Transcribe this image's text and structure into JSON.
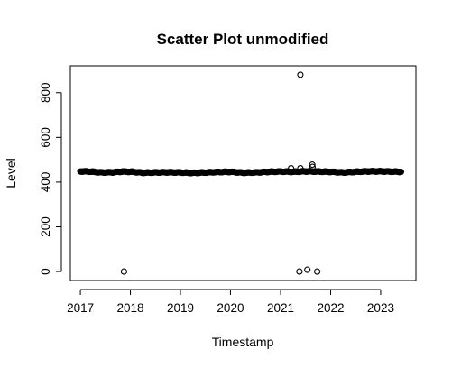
{
  "chart_data": {
    "type": "scatter",
    "title": "Scatter Plot unmodified",
    "xlabel": "Timestamp",
    "ylabel": "Level",
    "xlim": [
      "2016-10-20",
      "2023-09-15"
    ],
    "ylim": [
      -40,
      920
    ],
    "x_ticks": [
      "2017",
      "2018",
      "2019",
      "2020",
      "2021",
      "2022",
      "2023"
    ],
    "y_ticks": [
      "0",
      "200",
      "400",
      "600",
      "800"
    ],
    "grid": false,
    "legend": "none",
    "marker": "open-circle",
    "colors": {
      "points": "#000000",
      "background": "#ffffff"
    },
    "series": [
      {
        "values_trend": [
          [
            "2017-01-01",
            448
          ],
          [
            "2017-03-15",
            447
          ],
          [
            "2017-06-01",
            443
          ],
          [
            "2017-09-01",
            444
          ],
          [
            "2017-11-01",
            447
          ],
          [
            "2018-01-15",
            446
          ],
          [
            "2018-04-01",
            442
          ],
          [
            "2018-07-01",
            443
          ],
          [
            "2018-10-01",
            444
          ],
          [
            "2019-01-01",
            443
          ],
          [
            "2019-04-01",
            441
          ],
          [
            "2019-07-01",
            443
          ],
          [
            "2019-10-01",
            445
          ],
          [
            "2020-01-01",
            446
          ],
          [
            "2020-04-01",
            442
          ],
          [
            "2020-07-01",
            443
          ],
          [
            "2020-10-01",
            446
          ],
          [
            "2021-01-01",
            447
          ],
          [
            "2021-04-01",
            446
          ],
          [
            "2021-07-01",
            448
          ],
          [
            "2021-10-01",
            447
          ],
          [
            "2022-01-01",
            446
          ],
          [
            "2022-04-01",
            443
          ],
          [
            "2022-07-01",
            446
          ],
          [
            "2022-10-01",
            448
          ],
          [
            "2023-01-01",
            448
          ],
          [
            "2023-03-15",
            447
          ],
          [
            "2023-06-01",
            446
          ]
        ],
        "outliers": [
          [
            "2017-11-15",
            0
          ],
          [
            "2021-03-18",
            462
          ],
          [
            "2021-05-25",
            880
          ],
          [
            "2021-05-18",
            0
          ],
          [
            "2021-05-25",
            462
          ],
          [
            "2021-07-15",
            8
          ],
          [
            "2021-08-20",
            478
          ],
          [
            "2021-08-22",
            468
          ],
          [
            "2021-09-25",
            0
          ]
        ]
      }
    ]
  }
}
